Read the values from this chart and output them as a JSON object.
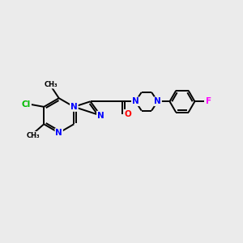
{
  "background_color": "#ebebeb",
  "bond_color": "#000000",
  "bond_lw": 1.4,
  "atom_colors": {
    "N": "#0000ff",
    "O": "#ff0000",
    "Cl": "#00bb00",
    "F": "#ff00ff",
    "C": "#000000"
  },
  "font_size": 7.5,
  "figsize": [
    3.0,
    3.0
  ],
  "dpi": 100,
  "xlim": [
    0,
    10
  ],
  "ylim": [
    0,
    10
  ]
}
